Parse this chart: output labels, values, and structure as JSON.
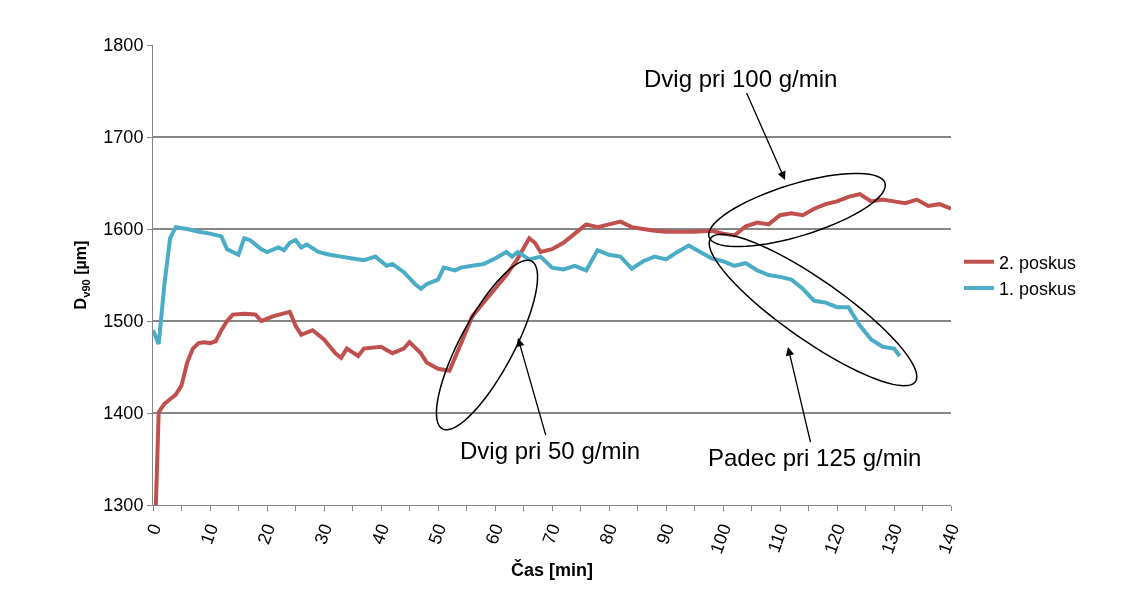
{
  "chart_data": {
    "type": "line",
    "xlabel": "Čas [min]",
    "ylabel": "D$_{v90}$ [µm]",
    "xlim": [
      0,
      140
    ],
    "ylim": [
      1300,
      1800
    ],
    "xticks": [
      0,
      {
        "value": 5,
        "label": null
      },
      10,
      {
        "value": 15,
        "label": null
      },
      20,
      {
        "value": 25,
        "label": null
      },
      30,
      {
        "value": 35,
        "label": null
      },
      40,
      {
        "value": 45,
        "label": null
      },
      50,
      {
        "value": 55,
        "label": null
      },
      60,
      {
        "value": 65,
        "label": null
      },
      70,
      {
        "value": 75,
        "label": null
      },
      80,
      {
        "value": 85,
        "label": null
      },
      90,
      {
        "value": 95,
        "label": null
      },
      100,
      {
        "value": 105,
        "label": null
      },
      110,
      {
        "value": 115,
        "label": null
      },
      120,
      {
        "value": 125,
        "label": null
      },
      130,
      {
        "value": 135,
        "label": null
      },
      140
    ],
    "yticks": [
      1300,
      1400,
      1500,
      1600,
      1700,
      1800
    ],
    "grid": "y",
    "legend": "right",
    "marker": "none",
    "line_style": "solid",
    "series": [
      {
        "name": "2. poskus",
        "color": "#c0504d",
        "x": [
          0.5,
          1,
          2,
          3,
          4,
          5,
          6,
          7,
          8,
          9,
          10,
          11,
          12,
          13,
          14,
          16,
          18,
          19,
          21,
          24,
          25,
          26,
          28,
          30,
          32,
          33,
          34,
          36,
          37,
          40,
          42,
          44,
          45,
          47,
          48,
          50,
          52,
          54,
          56,
          58,
          60,
          62,
          64,
          66,
          67,
          68,
          70,
          72,
          74,
          76,
          78,
          80,
          82,
          84,
          86,
          88,
          90,
          95,
          98,
          100,
          102,
          104,
          106,
          108,
          110,
          112,
          114,
          116,
          118,
          120,
          122,
          124,
          126,
          128,
          130,
          132,
          134,
          136,
          138,
          140
        ],
        "values": [
          1300,
          1401,
          1410,
          1415,
          1420,
          1430,
          1455,
          1470,
          1476,
          1477,
          1476,
          1478,
          1490,
          1500,
          1507,
          1508,
          1507,
          1500,
          1505,
          1510,
          1495,
          1485,
          1490,
          1480,
          1465,
          1460,
          1470,
          1462,
          1470,
          1472,
          1465,
          1470,
          1477,
          1465,
          1455,
          1448,
          1446,
          1475,
          1505,
          1520,
          1535,
          1550,
          1568,
          1590,
          1585,
          1575,
          1578,
          1585,
          1595,
          1605,
          1602,
          1605,
          1608,
          1602,
          1600,
          1598,
          1597,
          1597,
          1598,
          1595,
          1593,
          1603,
          1607,
          1605,
          1615,
          1617,
          1615,
          1622,
          1627,
          1630,
          1635,
          1638,
          1630,
          1632,
          1630,
          1628,
          1632,
          1625,
          1627,
          1622
        ]
      },
      {
        "name": "1. poskus",
        "color": "#4bacc6",
        "x": [
          0,
          1,
          2,
          3,
          4,
          6,
          8,
          10,
          12,
          13,
          14,
          15,
          16,
          17,
          19,
          20,
          22,
          23,
          24,
          25,
          26,
          27,
          29,
          31,
          33,
          35,
          37,
          39,
          41,
          42,
          44,
          46,
          47,
          48,
          50,
          51,
          53,
          54,
          56,
          58,
          60,
          62,
          63,
          64,
          66,
          68,
          70,
          72,
          74,
          76,
          78,
          80,
          82,
          84,
          86,
          88,
          90,
          92,
          94,
          96,
          98,
          100,
          102,
          104,
          106,
          108,
          110,
          112,
          114,
          116,
          118,
          120,
          122,
          124,
          126,
          128,
          130,
          131
        ],
        "values": [
          1490,
          1475,
          1540,
          1590,
          1602,
          1600,
          1597,
          1595,
          1592,
          1578,
          1575,
          1572,
          1590,
          1588,
          1578,
          1575,
          1580,
          1577,
          1585,
          1588,
          1580,
          1583,
          1575,
          1572,
          1570,
          1568,
          1566,
          1570,
          1560,
          1562,
          1553,
          1540,
          1535,
          1540,
          1545,
          1558,
          1555,
          1558,
          1560,
          1562,
          1568,
          1575,
          1570,
          1575,
          1567,
          1570,
          1558,
          1556,
          1560,
          1555,
          1577,
          1572,
          1570,
          1557,
          1565,
          1570,
          1567,
          1575,
          1582,
          1575,
          1568,
          1565,
          1560,
          1563,
          1555,
          1550,
          1548,
          1545,
          1535,
          1522,
          1520,
          1515,
          1515,
          1495,
          1480,
          1472,
          1470,
          1462
        ]
      }
    ],
    "annotations": [
      "Dvig pri 50 g/min",
      "Dvig pri 100 g/min",
      "Padec pri 125 g/min"
    ]
  }
}
